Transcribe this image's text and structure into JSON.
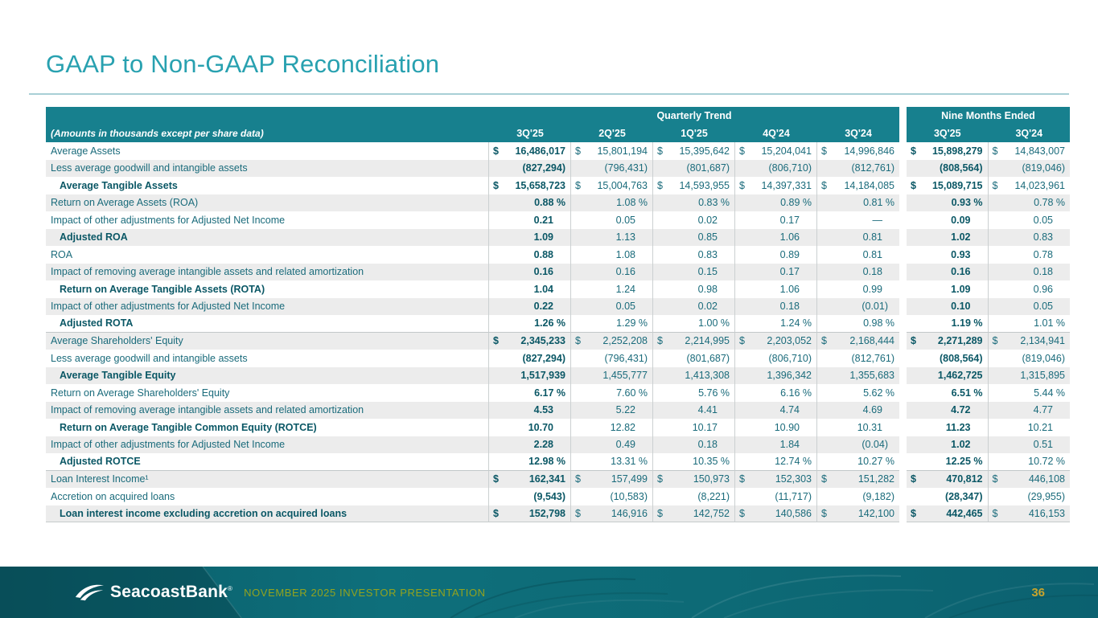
{
  "slide": {
    "title": "GAAP to Non-GAAP Reconciliation",
    "footer": {
      "logo_text": "SeacoastBank",
      "logo_mark": "®",
      "caption": "NOVEMBER 2025 INVESTOR PRESENTATION",
      "page_number": "36"
    }
  },
  "table": {
    "note": "(Amounts in thousands except per share data)",
    "currency_symbol": "$",
    "groups": {
      "quarterly": "Quarterly Trend",
      "nine_months": "Nine Months Ended"
    },
    "quarter_columns": [
      "3Q'25",
      "2Q'25",
      "1Q'25",
      "4Q'24",
      "3Q'24"
    ],
    "nine_month_columns": [
      "3Q'25",
      "3Q'24"
    ],
    "rows": [
      {
        "label": "Average Assets",
        "bold": false,
        "dollar": true,
        "values": [
          "16,486,017",
          "15,801,194",
          "15,395,642",
          "15,204,041",
          "14,996,846"
        ],
        "nine_months": [
          "15,898,279",
          "14,843,007"
        ]
      },
      {
        "label": "Less average goodwill and intangible assets",
        "bold": false,
        "dollar": false,
        "values": [
          "(827,294)",
          "(796,431)",
          "(801,687)",
          "(806,710)",
          "(812,761)"
        ],
        "nine_months": [
          "(808,564)",
          "(819,046)"
        ]
      },
      {
        "label": "Average Tangible Assets",
        "bold": true,
        "dollar": true,
        "values": [
          "15,658,723",
          "15,004,763",
          "14,593,955",
          "14,397,331",
          "14,184,085"
        ],
        "nine_months": [
          "15,089,715",
          "14,023,961"
        ]
      },
      {
        "label": "Return on Average Assets (ROA)",
        "bold": false,
        "dollar": false,
        "values": [
          "0.88 %",
          "1.08 %",
          "0.83 %",
          "0.89 %",
          "0.81 %"
        ],
        "nine_months": [
          "0.93 %",
          "0.78 %"
        ]
      },
      {
        "label": "Impact of other adjustments for Adjusted Net Income",
        "bold": false,
        "dollar": false,
        "values": [
          "0.21",
          "0.05",
          "0.02",
          "0.17",
          "—"
        ],
        "nine_months": [
          "0.09",
          "0.05"
        ]
      },
      {
        "label": "Adjusted ROA",
        "bold": true,
        "dollar": false,
        "values": [
          "1.09",
          "1.13",
          "0.85",
          "1.06",
          "0.81"
        ],
        "nine_months": [
          "1.02",
          "0.83"
        ]
      },
      {
        "label": "ROA",
        "bold": false,
        "dollar": false,
        "values": [
          "0.88",
          "1.08",
          "0.83",
          "0.89",
          "0.81"
        ],
        "nine_months": [
          "0.93",
          "0.78"
        ]
      },
      {
        "label": "Impact of removing average intangible assets and related amortization",
        "bold": false,
        "dollar": false,
        "values": [
          "0.16",
          "0.16",
          "0.15",
          "0.17",
          "0.18"
        ],
        "nine_months": [
          "0.16",
          "0.18"
        ]
      },
      {
        "label": "Return on Average Tangible Assets (ROTA)",
        "bold": true,
        "dollar": false,
        "values": [
          "1.04",
          "1.24",
          "0.98",
          "1.06",
          "0.99"
        ],
        "nine_months": [
          "1.09",
          "0.96"
        ]
      },
      {
        "label": "Impact of other adjustments for Adjusted Net Income",
        "bold": false,
        "dollar": false,
        "values": [
          "0.22",
          "0.05",
          "0.02",
          "0.18",
          "(0.01)"
        ],
        "nine_months": [
          "0.10",
          "0.05"
        ]
      },
      {
        "label": "Adjusted ROTA",
        "bold": true,
        "dollar": false,
        "section_end": true,
        "values": [
          "1.26 %",
          "1.29 %",
          "1.00 %",
          "1.24 %",
          "0.98 %"
        ],
        "nine_months": [
          "1.19 %",
          "1.01 %"
        ]
      },
      {
        "label": "Average Shareholders' Equity",
        "bold": false,
        "dollar": true,
        "values": [
          "2,345,233",
          "2,252,208",
          "2,214,995",
          "2,203,052",
          "2,168,444"
        ],
        "nine_months": [
          "2,271,289",
          "2,134,941"
        ]
      },
      {
        "label": "Less average goodwill and intangible assets",
        "bold": false,
        "dollar": false,
        "values": [
          "(827,294)",
          "(796,431)",
          "(801,687)",
          "(806,710)",
          "(812,761)"
        ],
        "nine_months": [
          "(808,564)",
          "(819,046)"
        ]
      },
      {
        "label": "Average Tangible Equity",
        "bold": true,
        "dollar": false,
        "values": [
          "1,517,939",
          "1,455,777",
          "1,413,308",
          "1,396,342",
          "1,355,683"
        ],
        "nine_months": [
          "1,462,725",
          "1,315,895"
        ]
      },
      {
        "label": "Return on Average Shareholders' Equity",
        "bold": false,
        "dollar": false,
        "values": [
          "6.17 %",
          "7.60 %",
          "5.76 %",
          "6.16 %",
          "5.62 %"
        ],
        "nine_months": [
          "6.51 %",
          "5.44 %"
        ]
      },
      {
        "label": "Impact of removing average intangible assets and related amortization",
        "bold": false,
        "dollar": false,
        "values": [
          "4.53",
          "5.22",
          "4.41",
          "4.74",
          "4.69"
        ],
        "nine_months": [
          "4.72",
          "4.77"
        ]
      },
      {
        "label": "Return on Average Tangible Common Equity (ROTCE)",
        "bold": true,
        "dollar": false,
        "values": [
          "10.70",
          "12.82",
          "10.17",
          "10.90",
          "10.31"
        ],
        "nine_months": [
          "11.23",
          "10.21"
        ]
      },
      {
        "label": "Impact of other adjustments for Adjusted Net Income",
        "bold": false,
        "dollar": false,
        "values": [
          "2.28",
          "0.49",
          "0.18",
          "1.84",
          "(0.04)"
        ],
        "nine_months": [
          "1.02",
          "0.51"
        ]
      },
      {
        "label": "Adjusted ROTCE",
        "bold": true,
        "dollar": false,
        "section_end": true,
        "values": [
          "12.98 %",
          "13.31 %",
          "10.35 %",
          "12.74 %",
          "10.27 %"
        ],
        "nine_months": [
          "12.25 %",
          "10.72 %"
        ]
      },
      {
        "label": "Loan Interest Income¹",
        "bold": false,
        "dollar": true,
        "values": [
          "162,341",
          "157,499",
          "150,973",
          "152,303",
          "151,282"
        ],
        "nine_months": [
          "470,812",
          "446,108"
        ]
      },
      {
        "label": "Accretion on acquired loans",
        "bold": false,
        "dollar": false,
        "values": [
          "(9,543)",
          "(10,583)",
          "(8,221)",
          "(11,717)",
          "(9,182)"
        ],
        "nine_months": [
          "(28,347)",
          "(29,955)"
        ]
      },
      {
        "label": "Loan interest income excluding accretion on acquired loans",
        "bold": true,
        "dollar": true,
        "values": [
          "152,798",
          "146,916",
          "142,752",
          "140,586",
          "142,100"
        ],
        "nine_months": [
          "442,465",
          "416,153"
        ]
      }
    ]
  }
}
